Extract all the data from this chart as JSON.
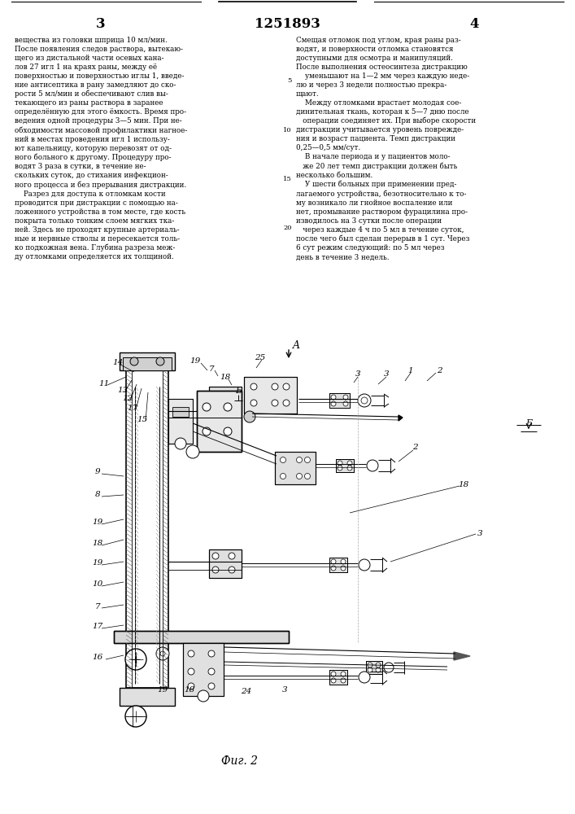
{
  "page_number_left": "3",
  "page_number_center": "1251893",
  "page_number_right": "4",
  "figure_caption": "Фиг. 2",
  "bg_color": "#ffffff",
  "text_color": "#000000",
  "line_color": "#000000",
  "left_column_text": "вещества из головки шприца 10 мл/мин.\nПосле появления следов раствора, вытекаю-\nщего из дистальной части осевых кана-\nлов 27 игл 1 на краях раны, между её\nповерхностью и поверхностью иглы 1, введе-\nние антисептика в рану замедляют до ско-\nрости 5 мл/мин и обеспечивают слив вы-\nтекающего из раны раствора в заранее\nопределённую для этого ёмкость. Время про-\nведения одной процедуры 3—5 мин. При не-\nобходимости массовой профилактики нагное-\nний в местах проведения игл 1 использу-\nют капельницу, которую перевозят от од-\nного больного к другому. Процедуру про-\nводят 3 раза в сутки, в течение не-\nскольких суток, до стихания инфекцион-\nного процесса и без прерывания дистракции.\n    Разрез для доступа к отломкам кости\nпроводится при дистракции с помощью на-\nложенного устройства в том месте, где кость\nпокрыта только тонким слоем мягких тка-\nней. Здесь не проходят крупные артериаль-\nные и нервные стволы и пересекается толь-\nко подкожная вена. Глубина разреза меж-\nду отломками определяется их толщиной.",
  "right_column_text": "Смещая отломок под углом, края раны раз-\nводят, и поверхности отломка становятся\nдоступными для осмотра и манипуляций.\nПосле выполнения остеосинтеза дистракцию\n    уменьшают на 1—2 мм через каждую неде-\nлю и через 3 недели полностью прекра-\nщают.\n    Между отломками врастает молодая сое-\nдинительная ткань, которая к 5—7 дню после\n   операции соединяет их. При выборе скорости\nдистракции учитывается уровень поврежде-\nния и возраст пациента. Темп дистракции\n0,25—0,5 мм/сут.\n    В начале периода и у пациентов моло-\n   же 20 лет темп дистракции должен быть\nнесколько большим.\n    У шести больных при применении пред-\nлагаемого устройства, безотносительно к то-\nму возникало ли гнойное воспаление или\nнет, промывание раствором фурацилина про-\nизводилось на 3 сутки после операции\n   через каждые 4 ч по 5 мл в течение суток,\nпосле чего был сделан перерыв в 1 сут. Через\n6 сут режим следующий: по 5 мл через\nдень в течение 3 недель."
}
